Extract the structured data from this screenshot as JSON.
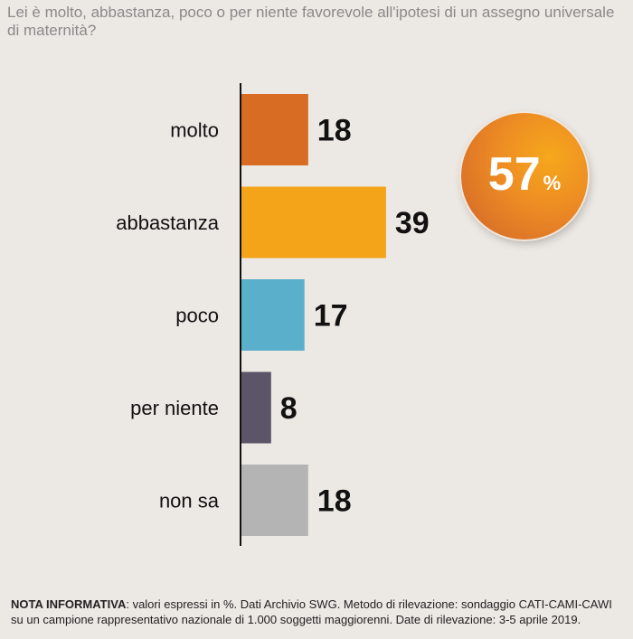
{
  "question": "Lei è molto, abbastanza, poco o per niente favorevole all'ipotesi di un assegno universale di maternità?",
  "chart_data": {
    "type": "bar",
    "orientation": "horizontal",
    "categories": [
      "molto",
      "abbastanza",
      "poco",
      "per niente",
      "non sa"
    ],
    "values": [
      18,
      39,
      17,
      8,
      18
    ],
    "colors": [
      "#d86c22",
      "#f4a418",
      "#5aafcb",
      "#5c5468",
      "#b4b4b4"
    ],
    "value_unit": "%"
  },
  "badge": {
    "value": "57",
    "unit": "%"
  },
  "note": {
    "label": "NOTA INFORMATIVA",
    "text": ": valori espressi in %. Dati Archivio SWG. Metodo di rilevazione: sondaggio CATI-CAMI-CAWI su un campione rappresentativo nazionale di 1.000 soggetti maggiorenni. Date di rilevazione: 3-5 aprile 2019."
  }
}
